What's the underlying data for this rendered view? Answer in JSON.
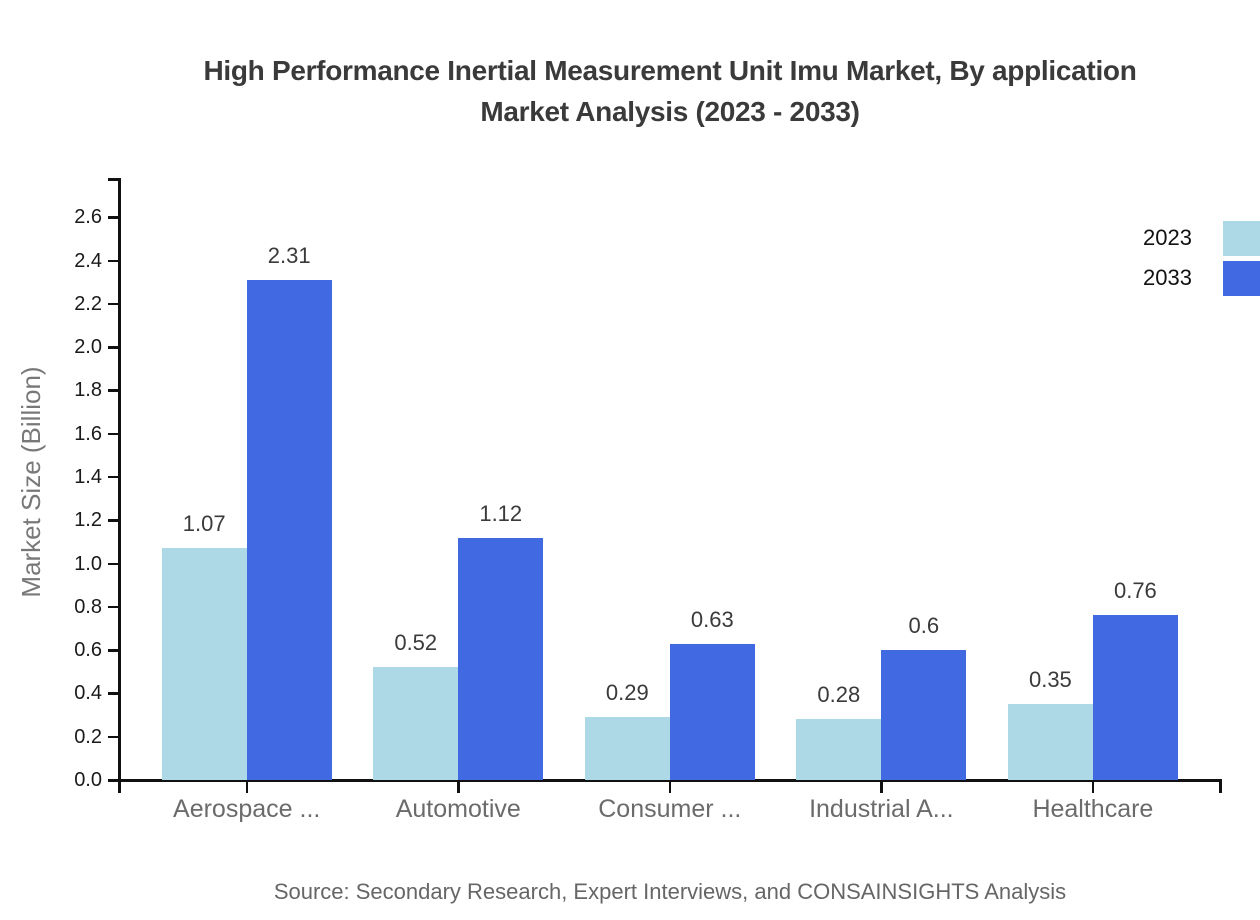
{
  "title": {
    "line1": "High Performance Inertial Measurement Unit Imu Market, By application",
    "line2": "Market Analysis (2023 - 2033)"
  },
  "legend": [
    {
      "label": "2023",
      "color": "#ADD8E6"
    },
    {
      "label": "2033",
      "color": "#4169E1"
    }
  ],
  "source": "Source: Secondary Research, Expert Interviews, and CONSAINSIGHTS Analysis",
  "chart_data": {
    "type": "bar",
    "title": "High Performance Inertial Measurement Unit Imu Market, By application Market Analysis (2023 - 2033)",
    "categories": [
      "Aerospace ...",
      "Automotive",
      "Consumer ...",
      "Industrial A...",
      "Healthcare"
    ],
    "series": [
      {
        "name": "2023",
        "color": "#ADD8E6",
        "values": [
          1.07,
          0.52,
          0.29,
          0.28,
          0.35
        ]
      },
      {
        "name": "2033",
        "color": "#4169E1",
        "values": [
          2.31,
          1.12,
          0.63,
          0.6,
          0.76
        ]
      }
    ],
    "xlabel": "",
    "ylabel": "Market Size (Billion)",
    "ylim": [
      0,
      2.6
    ],
    "yticks": [
      0.0,
      0.2,
      0.4,
      0.6,
      0.8,
      1.0,
      1.2,
      1.4,
      1.6,
      1.8,
      2.0,
      2.2,
      2.4,
      2.6
    ],
    "grid": false,
    "legend_position": "top-right",
    "value_labels": true,
    "axis_color": "#111111",
    "tick_label_color": "#1a1a1a",
    "category_label_color": "#6b6b6b",
    "value_label_color": "#3a3a3a"
  }
}
